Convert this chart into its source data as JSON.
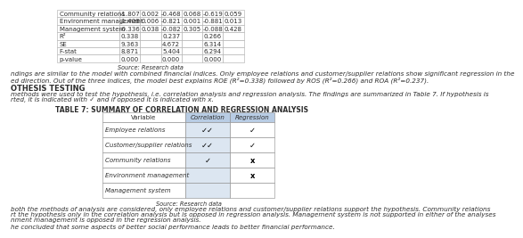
{
  "title": "TABLE 7: SUMMARY OF CORRELATION AND REGRESSION ANALYSIS",
  "source_table": "Source: Research data",
  "source_corr": "Source: Research data",
  "col_headers": [
    "Variable",
    "Correlation",
    "Regression"
  ],
  "rows": [
    {
      "variable": "Employee relations",
      "correlation": "✓✓",
      "regression": "✓"
    },
    {
      "variable": "Customer/supplier relations",
      "correlation": "✓✓",
      "regression": "✓"
    },
    {
      "variable": "Community relations",
      "correlation": "✓",
      "regression": "✗"
    },
    {
      "variable": "Environment management",
      "correlation": "",
      "regression": "✗"
    },
    {
      "variable": "Management system",
      "correlation": "",
      "regression": ""
    }
  ],
  "top_table_rows": [
    [
      "Community relations",
      "-1.807",
      "0.002",
      "-0.468",
      "0.068",
      "-0.619",
      "0.059"
    ],
    [
      "Environment management",
      "-1.408",
      "0.006",
      "-0.821",
      "0.001",
      "-0.881",
      "0.013"
    ],
    [
      "Management system",
      "-0.336",
      "0.038",
      "-0.082",
      "0.305",
      "-0.088",
      "0.428"
    ],
    [
      "R²",
      "0.338",
      "",
      "0.237",
      "",
      "0.266",
      ""
    ],
    [
      "SE",
      "9.363",
      "",
      "4.672",
      "",
      "6.314",
      ""
    ],
    [
      "F-stat",
      "8.871",
      "",
      "5.404",
      "",
      "6.294",
      ""
    ],
    [
      "p-value",
      "0.000",
      "",
      "0.000",
      "",
      "0.000",
      ""
    ]
  ],
  "paragraph1": "ndings are similar to the model with combined financial indices. Only employee relations and customer/supplier relations show significant regression in the\ned direction. Out of the three indices, the model best explains ROE (R²=0.338) followed by ROS (R²=0.266) and ROA (R²=0.237).",
  "hypothesis_heading": "OTHESIS TESTING",
  "paragraph2": "methods were used to test the hypothesis, i.e. correlation analysis and regression analysis. The findings are summarized in Table 7. If hypothesis is\nrted, it is indicated with ✓ and if opposed it is indicated with x.",
  "paragraph3": "both the methods of analysis are considered, only employee relations and customer/supplier relations support the hypothesis. Community relations\nrt the hypothesis only in the correlation analysis but is opposed in regression analysis. Management system is not supported in either of the analyses\nnment management is opposed in the regression analysis.",
  "paragraph4": "he concluded that some aspects of better social performance leads to better financial performance.",
  "header_bg": "#b8cce4",
  "corr_col_bg": "#dce6f1",
  "text_color": "#2d2d2d",
  "small_font": 5.0,
  "body_font": 5.2,
  "title_font": 5.5,
  "bold_heading_font": 6.0
}
